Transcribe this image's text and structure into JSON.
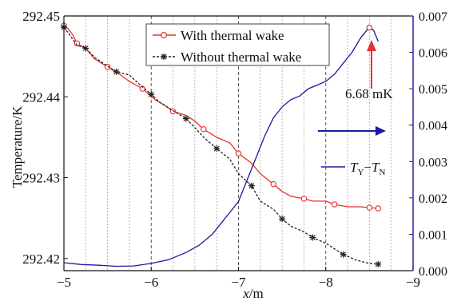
{
  "chart_data": {
    "type": "line",
    "xlabel_italic": "x",
    "xlabel_unit": "/m",
    "ylabel_left": "Temperature/K",
    "x_ticks": [
      "−5",
      "−6",
      "−7",
      "−8",
      "−9"
    ],
    "x_tick_values": [
      -5,
      -6,
      -7,
      -8,
      -9
    ],
    "xlim": [
      -5,
      -9
    ],
    "ylim_left": [
      292.4185,
      292.45
    ],
    "y_left_ticks": [
      "292.45",
      "292.44",
      "292.43",
      "292.42"
    ],
    "y_left_tick_values": [
      292.45,
      292.44,
      292.43,
      292.42
    ],
    "ylim_right": [
      0.0,
      0.007
    ],
    "y_right_ticks": [
      "0.007",
      "0.006",
      "0.005",
      "0.004",
      "0.003",
      "0.002",
      "0.001",
      "0.000"
    ],
    "y_right_tick_values": [
      0.007,
      0.006,
      0.005,
      0.004,
      0.003,
      0.002,
      0.001,
      0.0
    ],
    "grid": "vertical dotted",
    "legend_position": "top-center",
    "colors": {
      "with_wake": "#e8302a",
      "without_wake": "#222222",
      "diff": "#1a1aa0",
      "annotation": "#e8302a"
    },
    "series": [
      {
        "name": "With thermal wake",
        "axis": "left",
        "marker": "circle",
        "x": [
          -5.0,
          -5.05,
          -5.1,
          -5.15,
          -5.25,
          -5.35,
          -5.5,
          -5.65,
          -5.75,
          -5.9,
          -6.05,
          -6.15,
          -6.25,
          -6.4,
          -6.5,
          -6.6,
          -6.75,
          -6.9,
          -7.0,
          -7.15,
          -7.25,
          -7.4,
          -7.5,
          -7.6,
          -7.75,
          -7.85,
          -8.0,
          -8.1,
          -8.25,
          -8.4,
          -8.5,
          -8.6
        ],
        "values": [
          292.4488,
          292.4484,
          292.4477,
          292.4466,
          292.446,
          292.4447,
          292.4437,
          292.4427,
          292.4419,
          292.441,
          292.4396,
          292.439,
          292.4382,
          292.4377,
          292.437,
          292.436,
          292.435,
          292.4343,
          292.433,
          292.4318,
          292.4305,
          292.4292,
          292.4283,
          292.4277,
          292.4274,
          292.4271,
          292.4271,
          292.4267,
          292.4264,
          292.4264,
          292.4263,
          292.4262
        ]
      },
      {
        "name": "Without thermal wake",
        "axis": "left",
        "marker": "asterisk",
        "x": [
          -5.0,
          -5.05,
          -5.15,
          -5.25,
          -5.35,
          -5.5,
          -5.6,
          -5.75,
          -5.85,
          -6.0,
          -6.1,
          -6.25,
          -6.4,
          -6.5,
          -6.6,
          -6.75,
          -6.9,
          -7.0,
          -7.15,
          -7.25,
          -7.4,
          -7.5,
          -7.6,
          -7.75,
          -7.85,
          -8.0,
          -8.1,
          -8.2,
          -8.35,
          -8.5,
          -8.6
        ],
        "values": [
          292.4486,
          292.4479,
          292.4464,
          292.446,
          292.4449,
          292.4438,
          292.4431,
          292.4427,
          292.4417,
          292.4403,
          292.4393,
          292.4383,
          292.4373,
          292.4362,
          292.435,
          292.4336,
          292.4323,
          292.4305,
          292.429,
          292.4271,
          292.4261,
          292.4249,
          292.424,
          292.4233,
          292.4226,
          292.4219,
          292.4212,
          292.4205,
          292.4198,
          292.4194,
          292.4193
        ]
      },
      {
        "name": "T_Y − T_N",
        "axis": "right",
        "marker": "none",
        "x": [
          -5.0,
          -5.2,
          -5.4,
          -5.6,
          -5.8,
          -6.0,
          -6.2,
          -6.4,
          -6.55,
          -6.7,
          -6.8,
          -6.9,
          -7.0,
          -7.1,
          -7.2,
          -7.3,
          -7.4,
          -7.5,
          -7.6,
          -7.7,
          -7.8,
          -7.9,
          -8.0,
          -8.1,
          -8.2,
          -8.3,
          -8.4,
          -8.5,
          -8.55,
          -8.6
        ],
        "values": [
          0.00022,
          0.00017,
          0.00015,
          0.00012,
          0.00013,
          0.0002,
          0.0003,
          0.0005,
          0.0007,
          0.001,
          0.0013,
          0.0016,
          0.0019,
          0.0025,
          0.0031,
          0.0037,
          0.0042,
          0.0045,
          0.0047,
          0.0048,
          0.005,
          0.0051,
          0.0052,
          0.0054,
          0.0057,
          0.006,
          0.0064,
          0.0067,
          0.0066,
          0.0063
        ]
      }
    ],
    "legend_left": [
      {
        "label": "With thermal wake",
        "marker": "circle"
      },
      {
        "label": "Without thermal wake",
        "marker": "asterisk"
      }
    ],
    "legend_right": {
      "T": "T",
      "sub1": "Y",
      "minus": "−",
      "sub2": "N"
    },
    "annotation": {
      "text": "6.68 mK",
      "x": -8.5,
      "y_right": 0.00668
    }
  }
}
